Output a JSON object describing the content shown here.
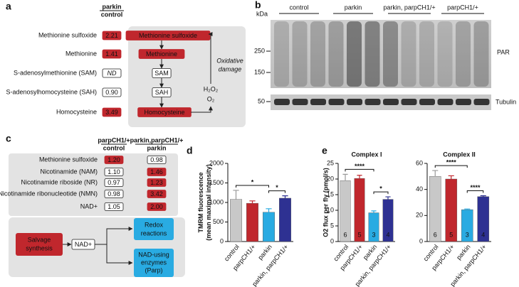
{
  "panel_a": {
    "label": "a",
    "header": [
      "parkin",
      "control"
    ],
    "rows": [
      {
        "name": "Methionine sulfoxide",
        "value": "2.21",
        "highlight": true
      },
      {
        "name": "Methionine",
        "value": "1.41",
        "highlight": true
      },
      {
        "name": "S-adenosylmethionine (SAM)",
        "value": "ND",
        "highlight": false
      },
      {
        "name": "S-adenosylhomocysteine (SAH)",
        "value": "0.90",
        "highlight": false
      },
      {
        "name": "Homocysteine",
        "value": "3.49",
        "highlight": true
      }
    ],
    "pathway": [
      {
        "text": "Methionine sulfoxide",
        "highlight": true
      },
      {
        "text": "Methionine",
        "highlight": true
      },
      {
        "text": "SAM",
        "highlight": false
      },
      {
        "text": "SAH",
        "highlight": false
      },
      {
        "text": "Homocysteine",
        "highlight": true
      }
    ],
    "damage": [
      "Oxidative",
      "damage"
    ],
    "h2o2": "H₂O₂",
    "o2": "O₂"
  },
  "panel_b": {
    "label": "b",
    "kda": "kDa",
    "groups": [
      "control",
      "parkin",
      "parkin, parpCH1/+",
      "parpCH1/+"
    ],
    "markers": [
      "250",
      "150",
      "50"
    ],
    "bands": [
      "PAR",
      "Tubulin"
    ]
  },
  "panel_c": {
    "label": "c",
    "headers": [
      [
        "parpCH1/+",
        "control"
      ],
      [
        "parkin,parpCH1/+",
        "parkin"
      ]
    ],
    "rows": [
      {
        "name": "Methionine sulfoxide",
        "values": [
          "1.20",
          "0.98"
        ],
        "highlight": [
          true,
          false
        ]
      },
      {
        "name": "Nicotinamide (NAM)",
        "values": [
          "1.10",
          "1.46"
        ],
        "highlight": [
          false,
          true
        ]
      },
      {
        "name": "Nicotinamide riboside (NR)",
        "values": [
          "0.97",
          "1.23"
        ],
        "highlight": [
          false,
          true
        ]
      },
      {
        "name": "Nicotinamide ribonucleotide (NMN)",
        "values": [
          "0.98",
          "3.42"
        ],
        "highlight": [
          false,
          true
        ]
      },
      {
        "name": "NAD+",
        "values": [
          "1.05",
          "2.00"
        ],
        "highlight": [
          false,
          true
        ]
      }
    ],
    "salvage": [
      "Salvage",
      "synthesis"
    ],
    "nad": "NAD+",
    "redox": [
      "Redox",
      "reactions"
    ],
    "enzymes": [
      "NAD-using",
      "enzymes",
      "(Parp)"
    ]
  },
  "chart_data": [
    {
      "type": "bar",
      "panel_label": "d",
      "ylabel": [
        "TMRM fluorescence",
        "(mean maximal intensity)"
      ],
      "categories": [
        "control",
        "parpCH1/+",
        "parkin",
        "parkin, parpCH1/+"
      ],
      "values": [
        1080,
        980,
        750,
        1110
      ],
      "errors": [
        230,
        60,
        90,
        60
      ],
      "colors": [
        "#c8c8c8",
        "#c0272d",
        "#29abe2",
        "#2e3192"
      ],
      "ylim": [
        0,
        2000
      ],
      "yticks": [
        0,
        500,
        1000,
        1500,
        2000
      ],
      "brackets": [
        {
          "text": "*",
          "between": [
            "control",
            "parkin"
          ]
        },
        {
          "text": "*",
          "between": [
            "parkin",
            "parkin, parpCH1/+"
          ]
        }
      ]
    },
    {
      "type": "bar",
      "panel_label": "e",
      "title": "Complex I",
      "ylabel": [
        "O2 flux per fly (pmol/s)"
      ],
      "categories": [
        "control",
        "parpCH1/+",
        "parkin",
        "parkin, parpCH1/+"
      ],
      "values": [
        19.5,
        20.2,
        9.2,
        13.5
      ],
      "errors": [
        2,
        1,
        0.6,
        0.8
      ],
      "n_labels": [
        "6",
        "5",
        "3",
        "4"
      ],
      "colors": [
        "#c8c8c8",
        "#c0272d",
        "#29abe2",
        "#2e3192"
      ],
      "ylim": [
        0,
        25
      ],
      "yticks": [
        0,
        5,
        10,
        15,
        20,
        25
      ],
      "brackets": [
        {
          "text": "****",
          "between": [
            "control",
            "parkin"
          ]
        },
        {
          "text": "*",
          "between": [
            "parkin",
            "parkin, parpCH1/+"
          ]
        }
      ]
    },
    {
      "type": "bar",
      "title": "Complex II",
      "categories": [
        "control",
        "parpCH1/+",
        "parkin",
        "parkin, parpCH1/+"
      ],
      "values": [
        50,
        48,
        24.5,
        34.5
      ],
      "errors": [
        4.5,
        2.5,
        0.5,
        0.7
      ],
      "n_labels": [
        "6",
        "5",
        "3",
        "4"
      ],
      "colors": [
        "#c8c8c8",
        "#c0272d",
        "#29abe2",
        "#2e3192"
      ],
      "ylim": [
        0,
        60
      ],
      "yticks": [
        0,
        20,
        40,
        60
      ],
      "brackets": [
        {
          "text": "****",
          "between": [
            "control",
            "parkin"
          ]
        },
        {
          "text": "****",
          "between": [
            "parkin",
            "parkin, parpCH1/+"
          ]
        }
      ]
    }
  ]
}
